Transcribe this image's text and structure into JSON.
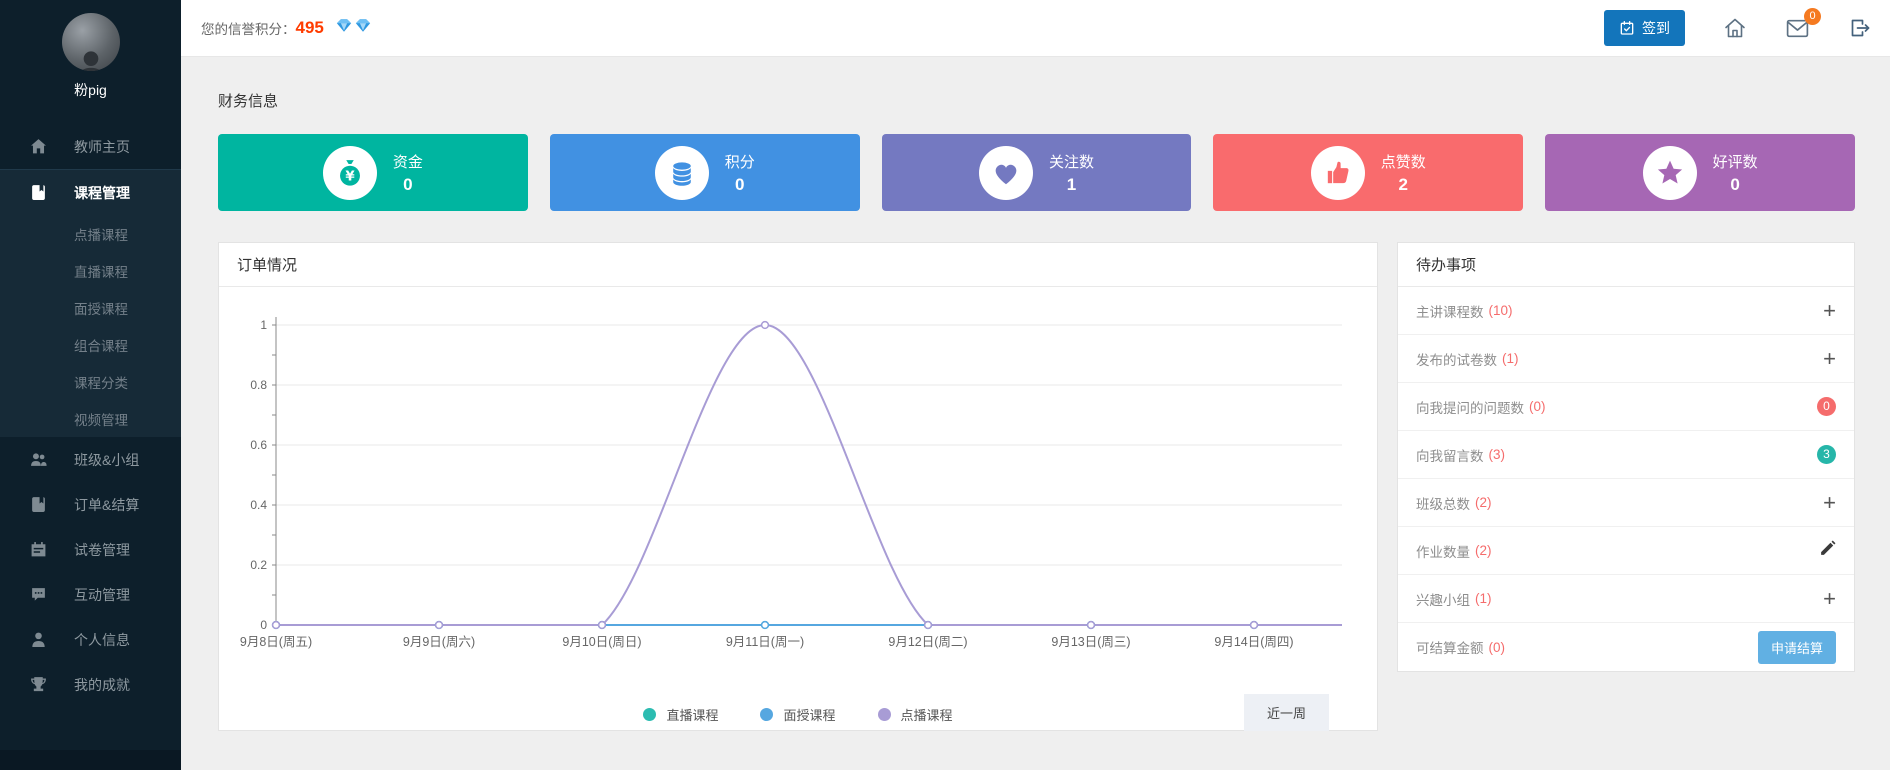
{
  "sidebar": {
    "user_name": "粉pig",
    "items": [
      {
        "label": "教师主页",
        "icon": "home-icon",
        "active": false
      },
      {
        "label": "课程管理",
        "icon": "course-icon",
        "active": true,
        "children": [
          "点播课程",
          "直播课程",
          "面授课程",
          "组合课程",
          "课程分类",
          "视频管理"
        ]
      },
      {
        "label": "班级&小组",
        "icon": "class-group-icon",
        "active": false
      },
      {
        "label": "订单&结算",
        "icon": "order-icon",
        "active": false
      },
      {
        "label": "试卷管理",
        "icon": "exam-icon",
        "active": false
      },
      {
        "label": "互动管理",
        "icon": "interaction-icon",
        "active": false
      },
      {
        "label": "个人信息",
        "icon": "profile-icon",
        "active": false
      },
      {
        "label": "我的成就",
        "icon": "achievement-icon",
        "active": false
      }
    ]
  },
  "topbar": {
    "credit_label": "您的信誉积分：",
    "credit_value": "495",
    "gem_count": 2,
    "signin_label": "签到",
    "mail_badge": "0"
  },
  "finance": {
    "section_title": "财务信息",
    "cards": [
      {
        "label": "资金",
        "value": "0",
        "color": "#00b5a0",
        "icon": "money-bag-icon"
      },
      {
        "label": "积分",
        "value": "0",
        "color": "#4191e2",
        "icon": "coins-icon"
      },
      {
        "label": "关注数",
        "value": "1",
        "color": "#7479c1",
        "icon": "heart-icon"
      },
      {
        "label": "点赞数",
        "value": "2",
        "color": "#f96b6d",
        "icon": "thumb-up-icon"
      },
      {
        "label": "好评数",
        "value": "0",
        "color": "#a667b4",
        "icon": "star-icon"
      }
    ]
  },
  "orders_panel": {
    "title": "订单情况",
    "range_button": "近一周"
  },
  "chart_data": {
    "type": "line",
    "title": "订单情况",
    "x": [
      "9月8日(周五)",
      "9月9日(周六)",
      "9月10日(周日)",
      "9月11日(周一)",
      "9月12日(周二)",
      "9月13日(周三)",
      "9月14日(周四)"
    ],
    "series": [
      {
        "name": "直播课程",
        "color": "#2cbcb1",
        "values": [
          0,
          0,
          0,
          0,
          0,
          0,
          0
        ],
        "smooth": false
      },
      {
        "name": "面授课程",
        "color": "#56a7e0",
        "values": [
          0,
          0,
          0,
          0,
          0,
          0,
          0
        ],
        "smooth": false
      },
      {
        "name": "点播课程",
        "color": "#a89cd5",
        "values": [
          0,
          0,
          0,
          1,
          0,
          0,
          0
        ],
        "smooth": true
      }
    ],
    "ylim": [
      0,
      1
    ],
    "yticks": [
      0,
      0.2,
      0.4,
      0.6,
      0.8,
      1
    ],
    "grid": true,
    "legend_position": "bottom"
  },
  "todo_panel": {
    "title": "待办事项",
    "items": [
      {
        "label": "主讲课程数",
        "count": "10",
        "action": "plus"
      },
      {
        "label": "发布的试卷数",
        "count": "1",
        "action": "plus"
      },
      {
        "label": "向我提问的问题数",
        "count": "0",
        "action": "badge",
        "badge_text": "0",
        "badge_color": "#f56c6c"
      },
      {
        "label": "向我留言数",
        "count": "3",
        "action": "badge",
        "badge_text": "3",
        "badge_color": "#26b6a9"
      },
      {
        "label": "班级总数",
        "count": "2",
        "action": "plus"
      },
      {
        "label": "作业数量",
        "count": "2",
        "action": "pencil"
      },
      {
        "label": "兴趣小组",
        "count": "1",
        "action": "plus"
      },
      {
        "label": "可结算金额",
        "count": "0",
        "action": "button",
        "button_label": "申请结算"
      }
    ]
  }
}
